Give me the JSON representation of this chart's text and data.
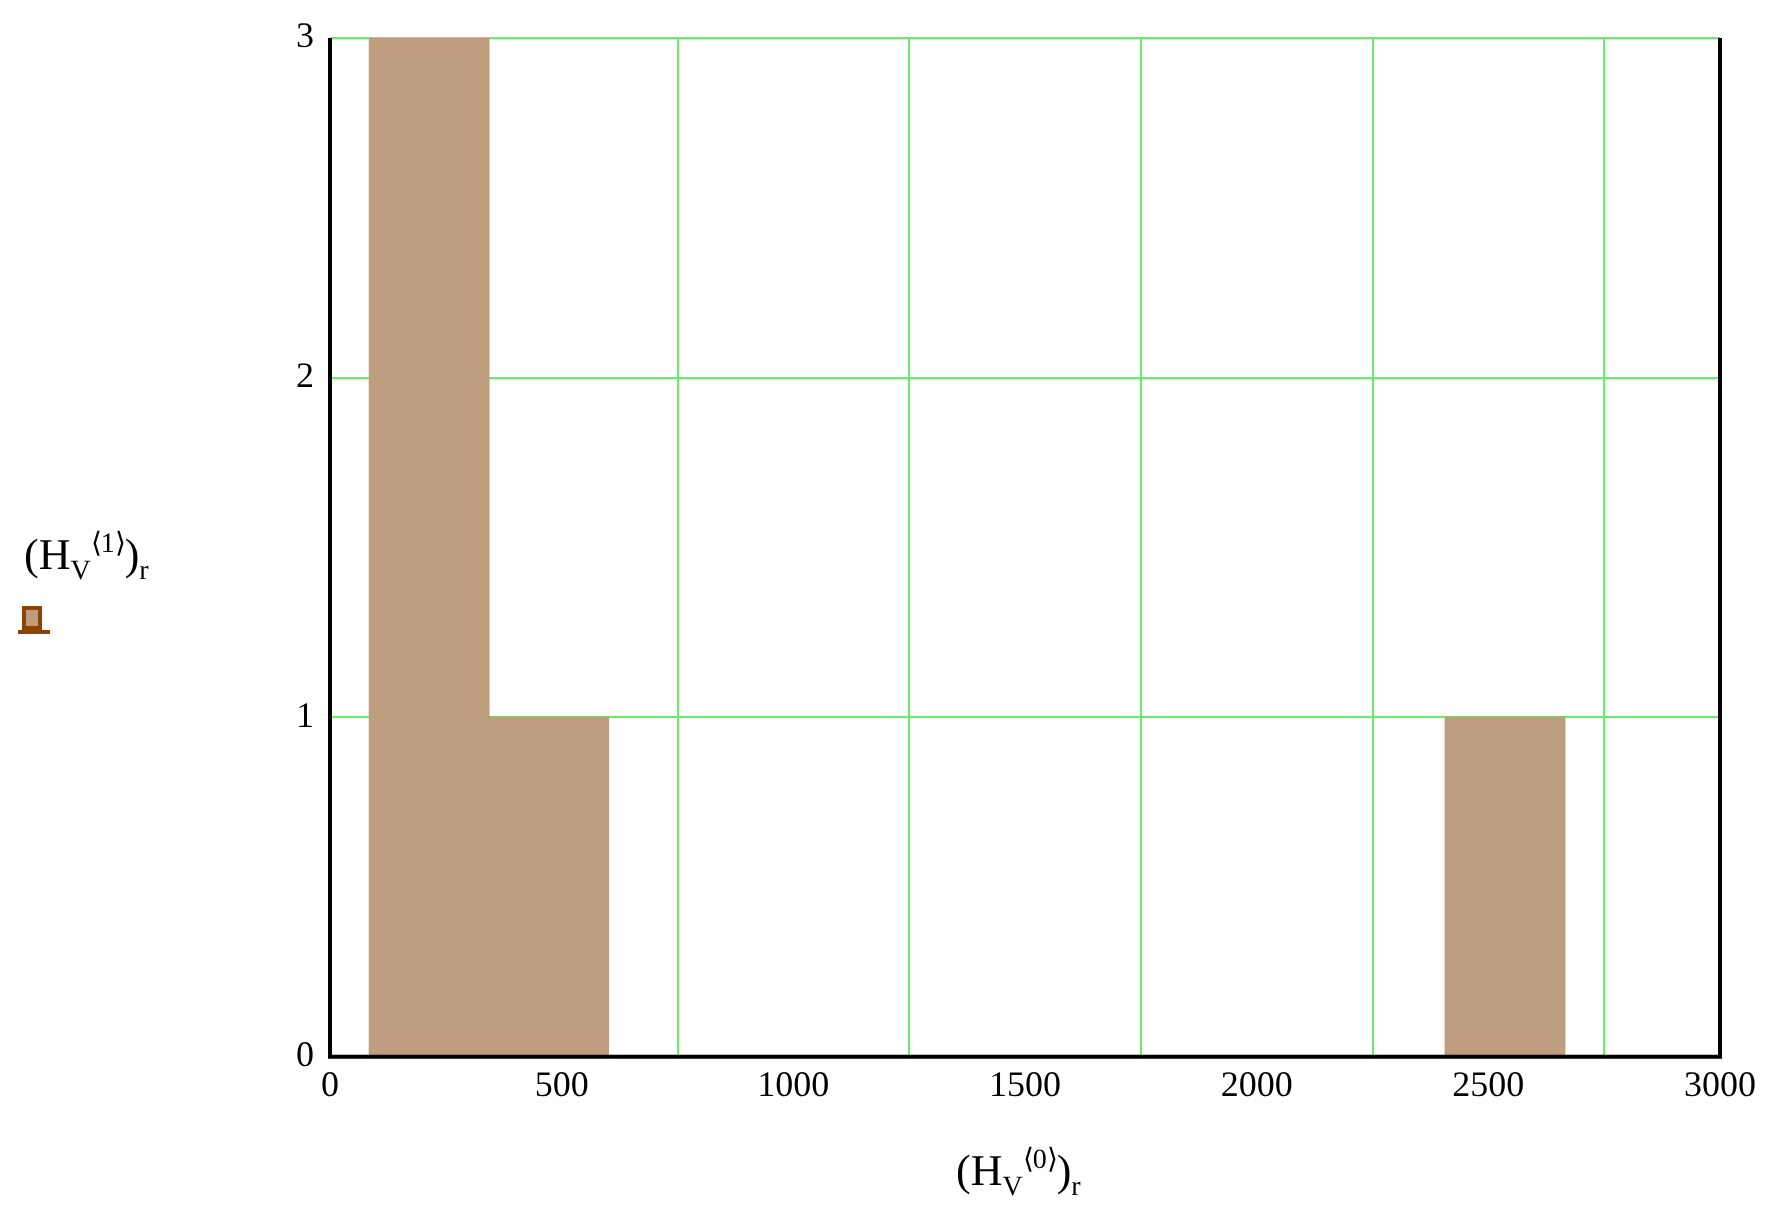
{
  "chart_data": {
    "type": "histogram",
    "xlabel": "(H$_{V}$$^{⟨0⟩}$)$_{r}$",
    "ylabel": "(H$_{V}$$^{⟨1⟩}$)$_{r}$",
    "bins": [
      85,
      343,
      601,
      859,
      1117,
      1375,
      1633,
      1891,
      2149,
      2407,
      2665
    ],
    "values": [
      3,
      1,
      0,
      0,
      0,
      0,
      0,
      0,
      0,
      1
    ],
    "color": "#be9e7e",
    "xlim": [
      0,
      3000
    ],
    "xticks": [
      0,
      500,
      1000,
      1500,
      2000,
      2500,
      3000
    ],
    "ylim": [
      0,
      3
    ],
    "yticks": [
      0,
      1,
      2,
      3
    ],
    "grid": true
  }
}
